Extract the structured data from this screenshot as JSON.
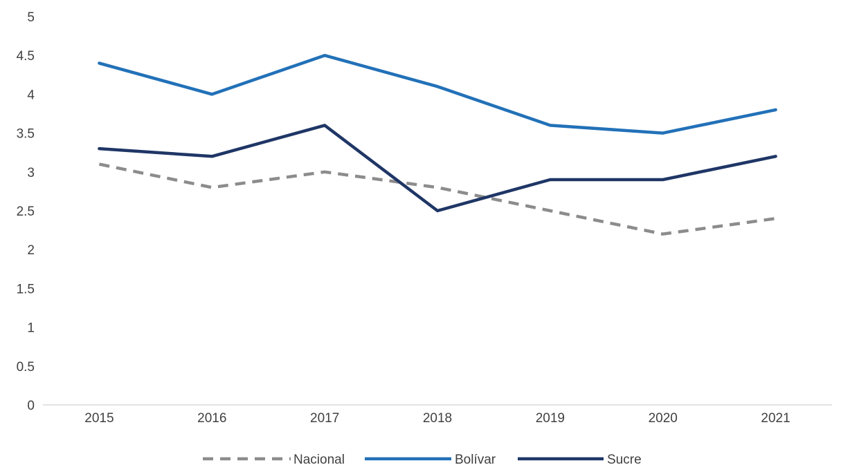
{
  "chart_data": {
    "type": "line",
    "title": "",
    "xlabel": "",
    "ylabel": "",
    "categories": [
      "2015",
      "2016",
      "2017",
      "2018",
      "2019",
      "2020",
      "2021"
    ],
    "ylim": [
      0,
      5
    ],
    "yticks": [
      0,
      0.5,
      1,
      1.5,
      2,
      2.5,
      3,
      3.5,
      4,
      4.5,
      5
    ],
    "ytick_labels": [
      "0",
      "0.5",
      "1",
      "1.5",
      "2",
      "2.5",
      "3",
      "3.5",
      "4",
      "4.5",
      "5"
    ],
    "grid": false,
    "legend": "bottom",
    "series": [
      {
        "name": "Nacional",
        "values": [
          3.1,
          2.8,
          3.0,
          2.8,
          2.5,
          2.2,
          2.4
        ],
        "color": "#8c8c8c",
        "style": "dashed"
      },
      {
        "name": "Bolívar",
        "values": [
          4.4,
          4.0,
          4.5,
          4.1,
          3.6,
          3.5,
          3.8
        ],
        "color": "#2271b8",
        "style": "solid"
      },
      {
        "name": "Sucre",
        "values": [
          3.3,
          3.2,
          3.6,
          2.5,
          2.9,
          2.9,
          3.2
        ],
        "color": "#1f3666",
        "style": "solid"
      }
    ]
  }
}
